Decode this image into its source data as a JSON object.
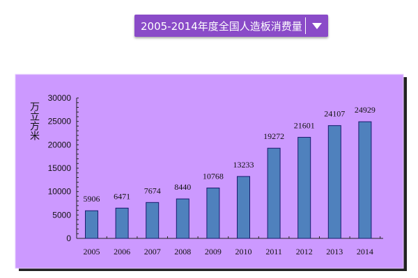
{
  "header": {
    "title": "2005-2014年度全国人造板消费量",
    "dropdown_icon": "triangle-down-icon"
  },
  "chart_data": {
    "type": "bar",
    "title": "2005-2014年度全国人造板消费量",
    "ylabel": "万立方米",
    "xlabel": "",
    "categories": [
      "2005",
      "2006",
      "2007",
      "2008",
      "2009",
      "2010",
      "2011",
      "2012",
      "2013",
      "2014"
    ],
    "values": [
      5906,
      6471,
      7674,
      8440,
      10768,
      13233,
      19272,
      21601,
      24107,
      24929
    ],
    "ylim": [
      0,
      30000
    ],
    "yticks": [
      "0",
      "5000",
      "10000",
      "15000",
      "20000",
      "25000",
      "30000"
    ],
    "grid": false,
    "legend": "none",
    "colors": {
      "background": "#cc99ff",
      "bar": "#4f81bd",
      "bar_border": "#1a1a6e"
    }
  }
}
